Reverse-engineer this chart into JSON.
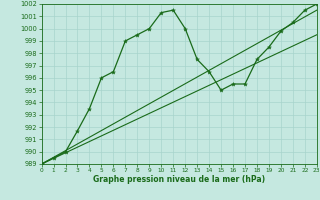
{
  "xlabel": "Graphe pression niveau de la mer (hPa)",
  "bg_color": "#c5e8e0",
  "grid_color": "#a8d4cc",
  "line_color": "#1a6b1a",
  "ylim": [
    989,
    1002
  ],
  "xlim": [
    0,
    23
  ],
  "yticks": [
    989,
    990,
    991,
    992,
    993,
    994,
    995,
    996,
    997,
    998,
    999,
    1000,
    1001,
    1002
  ],
  "xticks": [
    0,
    1,
    2,
    3,
    4,
    5,
    6,
    7,
    8,
    9,
    10,
    11,
    12,
    13,
    14,
    15,
    16,
    17,
    18,
    19,
    20,
    21,
    22,
    23
  ],
  "main_line_x": [
    0,
    1,
    2,
    3,
    4,
    5,
    6,
    7,
    8,
    9,
    10,
    11,
    12,
    13,
    14,
    15,
    16,
    17,
    18,
    19,
    20,
    21,
    22,
    23
  ],
  "main_line_y": [
    989.0,
    989.5,
    990.0,
    991.7,
    993.5,
    996.0,
    996.5,
    999.0,
    999.5,
    1000.0,
    1001.3,
    1001.5,
    1000.0,
    997.5,
    996.5,
    995.0,
    995.5,
    995.5,
    997.5,
    998.5,
    999.8,
    1000.5,
    1001.5,
    1002.0
  ],
  "trend1_x": [
    0,
    23
  ],
  "trend1_y": [
    989.0,
    1001.5
  ],
  "trend2_x": [
    0,
    23
  ],
  "trend2_y": [
    989.0,
    999.5
  ]
}
